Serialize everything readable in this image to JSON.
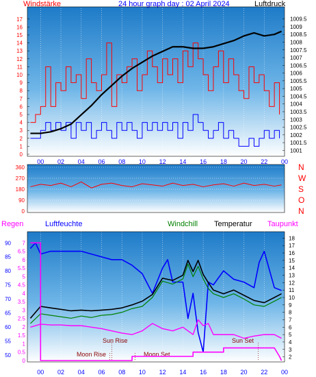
{
  "header": {
    "left_label": "Windstärke",
    "title": "24 hour graph day : 02 April 2024",
    "right_label": "Luftdruck"
  },
  "compass": [
    "N",
    "W",
    "S",
    "O",
    "N"
  ],
  "bottom_header": {
    "regen": "Regen",
    "luftfeuchte": "Luftfeuchte",
    "windchill": "Windchill",
    "temperatur": "Temperatur",
    "taupunkt": "Taupunkt"
  },
  "annotations": {
    "sun_rise": "Sun Rise",
    "sun_set": "Sun Set",
    "moon_rise": "Moon Rise",
    "moon_set": "Moon Set"
  },
  "colors": {
    "wind": "#ff0000",
    "gust": "#0000ff",
    "pressure": "#000000",
    "direction": "#ff0000",
    "humidity": "#0000ff",
    "temperature": "#000000",
    "windchill": "#008000",
    "dewpoint": "#ff00ff",
    "rain": "#ff00ff",
    "header_red": "#ff0000",
    "header_blue": "#0000ff"
  },
  "chart_data": [
    {
      "type": "line",
      "name": "wind-pressure",
      "x_ticks": [
        "00",
        "02",
        "04",
        "06",
        "08",
        "10",
        "12",
        "14",
        "16",
        "18",
        "20",
        "22",
        "00"
      ],
      "y_left_ticks": [
        "0",
        "1",
        "2",
        "3",
        "4",
        "5",
        "6",
        "7",
        "8",
        "9",
        "10",
        "11",
        "12",
        "13",
        "14",
        "15",
        "16",
        "17"
      ],
      "y_right_ticks": [
        "1001",
        "1001.5",
        "1002",
        "1002.5",
        "1003",
        "1003.5",
        "1004",
        "1004.5",
        "1005",
        "1005.5",
        "1006",
        "1006.5",
        "1007",
        "1007.5",
        "1008",
        "1008.5",
        "1009",
        "1009.5"
      ],
      "ylim_left": [
        0,
        17.5
      ],
      "ylim_right": [
        1000.75,
        1009.75
      ],
      "series": [
        {
          "role": "pressure",
          "x": [
            -1,
            0,
            1,
            2,
            3,
            4,
            5,
            6,
            7,
            8,
            9,
            10,
            11,
            12,
            13,
            14,
            15,
            16,
            17,
            18,
            19,
            20,
            21,
            22,
            23,
            23.7
          ],
          "values": [
            1002.1,
            1002.1,
            1002.2,
            1002.4,
            1002.7,
            1003.3,
            1003.9,
            1004.6,
            1005.2,
            1005.8,
            1006.3,
            1006.7,
            1007.1,
            1007.4,
            1007.7,
            1007.7,
            1007.6,
            1007.6,
            1007.7,
            1007.9,
            1008.1,
            1008.4,
            1008.6,
            1008.4,
            1008.5,
            1008.7
          ]
        },
        {
          "role": "wind_speed",
          "x": [
            -1,
            -0.5,
            0,
            0.5,
            1,
            1.5,
            2,
            2.5,
            3,
            3.5,
            4,
            4.5,
            5,
            5.5,
            6,
            6.5,
            7,
            7.5,
            8,
            8.5,
            9,
            9.5,
            10,
            10.5,
            11,
            11.5,
            12,
            12.5,
            13,
            13.5,
            14,
            14.5,
            15,
            15.5,
            16,
            16.5,
            17,
            17.5,
            18,
            18.5,
            19,
            19.5,
            20,
            20.5,
            21,
            21.5,
            22,
            22.5,
            23,
            23.5
          ],
          "values": [
            4,
            5,
            6,
            11,
            6,
            9,
            8,
            11,
            9,
            10,
            7,
            12,
            9,
            8,
            10,
            14,
            6,
            10,
            9,
            11,
            12,
            8,
            10,
            13,
            11,
            9,
            12,
            10,
            12,
            9,
            13,
            11,
            14,
            12,
            10,
            8,
            11,
            13,
            9,
            12,
            10,
            8,
            7,
            11,
            9,
            10,
            8,
            6,
            9,
            5
          ]
        },
        {
          "role": "wind_gust",
          "x": [
            -1,
            -0.5,
            0,
            0.5,
            1,
            1.5,
            2,
            2.5,
            3,
            3.5,
            4,
            4.5,
            5,
            5.5,
            6,
            6.5,
            7,
            7.5,
            8,
            8.5,
            9,
            9.5,
            10,
            10.5,
            11,
            11.5,
            12,
            12.5,
            13,
            13.5,
            14,
            14.5,
            15,
            15.5,
            16,
            16.5,
            17,
            17.5,
            18,
            18.5,
            19,
            19.5,
            20,
            20.5,
            21,
            21.5,
            22,
            22.5,
            23,
            23.5
          ],
          "values": [
            2,
            2,
            3,
            4,
            3,
            4,
            3,
            4,
            2,
            4,
            3,
            4,
            2,
            3,
            4,
            3,
            2,
            4,
            3,
            4,
            3,
            2,
            4,
            3,
            4,
            3,
            4,
            3,
            4,
            2,
            4,
            3,
            5,
            4,
            3,
            2,
            3,
            4,
            2,
            3,
            2,
            1,
            1,
            2,
            1,
            2,
            3,
            2,
            3,
            2
          ]
        }
      ]
    },
    {
      "type": "line",
      "name": "wind-direction",
      "x_ticks": [],
      "y_ticks": [
        "360",
        "270",
        "180",
        "90",
        "0"
      ],
      "ylim": [
        0,
        360
      ],
      "series": [
        {
          "role": "wind_direction",
          "x": [
            -1,
            0,
            1,
            2,
            3,
            4,
            5,
            6,
            7,
            8,
            9,
            10,
            11,
            12,
            13,
            14,
            15,
            16,
            17,
            18,
            19,
            20,
            21,
            22,
            23,
            23.7
          ],
          "values": [
            200,
            220,
            210,
            230,
            200,
            240,
            190,
            220,
            230,
            210,
            200,
            225,
            215,
            205,
            230,
            210,
            220,
            200,
            215,
            225,
            205,
            230,
            210,
            220,
            205,
            215
          ]
        }
      ]
    },
    {
      "type": "line",
      "name": "temperature-humidity",
      "x_ticks": [
        "00",
        "02",
        "04",
        "06",
        "08",
        "10",
        "12",
        "14",
        "16",
        "18",
        "20",
        "22",
        "00"
      ],
      "y_left_humidity_ticks": [
        "50",
        "55",
        "60",
        "65",
        "70",
        "75",
        "80",
        "85",
        "90"
      ],
      "y_left_rain_ticks": [
        "0",
        "0.5",
        "1",
        "1.5",
        "2",
        "2.5",
        "3",
        "3.5",
        "4",
        "4.5",
        "5",
        "5.5",
        "6",
        "6.5",
        "7"
      ],
      "y_right_ticks": [
        "2",
        "3",
        "4",
        "5",
        "6",
        "7",
        "8",
        "9",
        "10",
        "11",
        "12",
        "13",
        "14",
        "15",
        "16",
        "17",
        "18"
      ],
      "ylim_temp": [
        1.5,
        18.5
      ],
      "series": [
        {
          "role": "humidity",
          "x": [
            -1,
            -0.5,
            0,
            1,
            2,
            3,
            4,
            5,
            6,
            7,
            8,
            9,
            10,
            11,
            12,
            12.5,
            13,
            14,
            14.5,
            15,
            15.5,
            16,
            16.5,
            17,
            18,
            19,
            20,
            21,
            21.5,
            22,
            23,
            23.7
          ],
          "values": [
            88,
            90,
            86,
            87,
            87,
            87,
            87,
            86,
            85,
            84,
            84,
            82,
            79,
            72,
            81,
            84,
            76,
            76,
            63,
            72,
            58,
            51,
            76,
            75,
            80,
            77,
            76,
            74,
            83,
            87,
            74,
            73
          ]
        },
        {
          "role": "temperature",
          "x": [
            -1,
            0,
            1,
            2,
            3,
            4,
            5,
            6,
            7,
            8,
            9,
            10,
            11,
            12,
            13,
            14,
            14.5,
            15,
            15.5,
            16,
            16.5,
            17,
            18,
            19,
            20,
            21,
            22,
            23,
            23.7
          ],
          "values": [
            7.2,
            8.8,
            8.6,
            8.4,
            8.2,
            8.3,
            8.2,
            8.3,
            8.4,
            8.6,
            9.0,
            9.5,
            10.4,
            12.6,
            12.3,
            13.0,
            15.0,
            13.5,
            15.0,
            13.1,
            12.0,
            11.0,
            10.5,
            11.0,
            10.3,
            9.6,
            9.3,
            10.0,
            10.5
          ]
        },
        {
          "role": "windchill",
          "x": [
            -1,
            0,
            1,
            2,
            3,
            4,
            5,
            6,
            7,
            8,
            9,
            10,
            11,
            12,
            13,
            14,
            14.5,
            15,
            15.5,
            16,
            16.5,
            17,
            18,
            19,
            20,
            21,
            22,
            23,
            23.7
          ],
          "values": [
            6.5,
            7.8,
            7.6,
            7.4,
            7.2,
            7.5,
            7.3,
            7.6,
            7.7,
            8.0,
            8.5,
            8.8,
            10.0,
            12.2,
            11.8,
            12.5,
            14.5,
            12.8,
            14.2,
            12.5,
            11.2,
            10.5,
            10.0,
            10.5,
            9.8,
            9.0,
            8.8,
            9.5,
            10.0
          ]
        },
        {
          "role": "dewpoint",
          "x": [
            -1,
            0,
            1,
            2,
            3,
            4,
            5,
            6,
            7,
            8,
            9,
            10,
            11,
            12,
            13,
            14,
            15,
            15.5,
            16,
            16.5,
            17,
            18,
            19,
            20,
            21,
            22,
            23,
            23.7
          ],
          "values": [
            6.0,
            6.4,
            6.3,
            6.3,
            6.2,
            6.2,
            6.0,
            5.8,
            5.5,
            5.2,
            5.0,
            5.5,
            6.5,
            5.8,
            5.5,
            6.0,
            5.0,
            7.0,
            6.2,
            6.5,
            5.0,
            5.0,
            5.0,
            4.5,
            4.8,
            5.0,
            5.0,
            4.5
          ]
        },
        {
          "role": "rain",
          "x": [
            -1,
            0,
            0,
            1,
            2,
            3,
            4,
            5,
            6,
            7,
            8,
            9,
            9,
            10,
            11,
            12,
            13,
            14,
            15,
            15,
            16,
            17,
            18,
            18,
            19,
            20,
            21,
            22,
            23,
            23.5,
            23.7
          ],
          "values": [
            7.0,
            7.0,
            0.0,
            0.0,
            0.0,
            0.0,
            0.0,
            0.0,
            0.0,
            0.0,
            0.0,
            0.0,
            0.25,
            0.25,
            0.25,
            0.25,
            0.25,
            0.25,
            0.25,
            0.5,
            0.5,
            0.5,
            0.5,
            0.75,
            0.75,
            0.75,
            0.75,
            0.75,
            0.75,
            0.25,
            0.0
          ]
        }
      ]
    }
  ]
}
